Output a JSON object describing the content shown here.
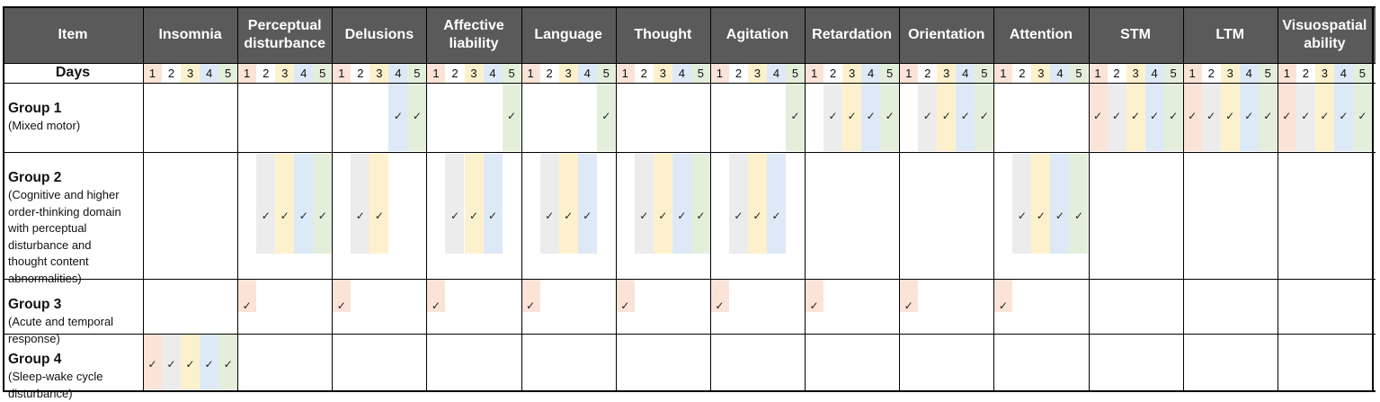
{
  "header": {
    "item_label": "Item",
    "columns": [
      "Insomnia",
      "Perceptual disturbance",
      "Delusions",
      "Affective liability",
      "Language",
      "Thought",
      "Agitation",
      "Retardation",
      "Orientation",
      "Attention",
      "STM",
      "LTM",
      "Visuospatial ability"
    ],
    "days_label": "Days",
    "days": [
      "1",
      "2",
      "3",
      "4",
      "5"
    ]
  },
  "colors": {
    "header_bg": "#5a5a5a",
    "day1": "#fbe3d7",
    "day2": "#ececec",
    "day3": "#fdf1cd",
    "day4": "#dde9f6",
    "day5": "#e3efdb",
    "check_mark": "#222222"
  },
  "check_symbol": "✓",
  "groups": [
    {
      "title": "Group 1",
      "subtitle": [
        "(Mixed motor)"
      ],
      "marks": [
        [],
        [],
        [
          4,
          5
        ],
        [
          5
        ],
        [
          5
        ],
        [],
        [
          5
        ],
        [
          2,
          3,
          4,
          5
        ],
        [
          2,
          3,
          4,
          5
        ],
        [],
        [
          1,
          2,
          3,
          4,
          5
        ],
        [
          1,
          2,
          3,
          4,
          5
        ],
        [
          1,
          2,
          3,
          4,
          5
        ]
      ]
    },
    {
      "title": "Group 2",
      "subtitle": [
        "(Cognitive and higher",
        "order-thinking domain",
        "with perceptual",
        "disturbance and",
        "thought content",
        "abnormalities)"
      ],
      "marks": [
        [],
        [
          2,
          3,
          4,
          5
        ],
        [
          2,
          3
        ],
        [
          2,
          3,
          4
        ],
        [
          2,
          3,
          4
        ],
        [
          2,
          3,
          4,
          5
        ],
        [
          2,
          3,
          4
        ],
        [],
        [],
        [
          2,
          3,
          4,
          5
        ],
        [],
        [],
        []
      ]
    },
    {
      "title": "Group 3",
      "subtitle": [
        "(Acute and temporal",
        "response)"
      ],
      "marks": [
        [],
        [
          1
        ],
        [
          1
        ],
        [
          1
        ],
        [
          1
        ],
        [
          1
        ],
        [
          1
        ],
        [
          1
        ],
        [
          1
        ],
        [
          1
        ],
        [],
        [],
        []
      ]
    },
    {
      "title": "Group 4",
      "subtitle": [
        "(Sleep-wake cycle",
        "disturbance)"
      ],
      "marks": [
        [
          1,
          2,
          3,
          4,
          5
        ],
        [],
        [],
        [],
        [],
        [],
        [],
        [],
        [],
        [],
        [],
        [],
        []
      ]
    }
  ]
}
